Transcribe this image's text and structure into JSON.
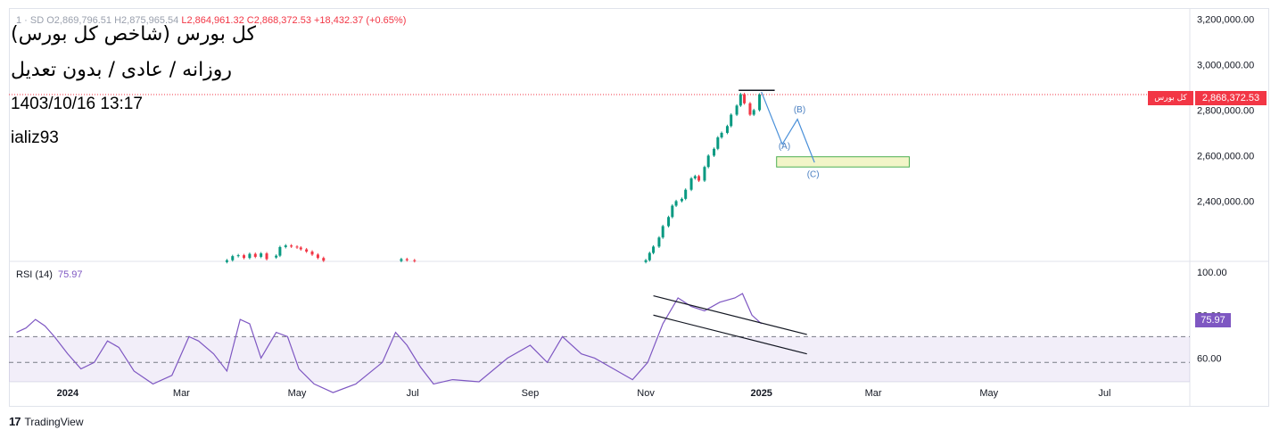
{
  "ohlc_text": {
    "lead": "1 · SD",
    "open": "O2,869,796.51",
    "high": "H2,875,965.54",
    "low": "L2,864,961.32",
    "close": "C2,868,372.53",
    "change": "+18,432.37 (+0.65%)"
  },
  "title_lines": [
    "کل بورس (شاخص کل بورس)",
    "روزانه / عادی / بدون تعدیل",
    "1403/10/16  13:17",
    "ializ93"
  ],
  "last_price": {
    "value": "2,868,372.53",
    "name": "کل بورس",
    "color": "#f23645"
  },
  "rsi_label": {
    "name": "RSI (14)",
    "value": "75.97",
    "color": "#7e57c2"
  },
  "brand": {
    "logo": "17",
    "name": "TradingView"
  },
  "colors": {
    "up": "#089981",
    "down": "#f23645",
    "rsi": "#7e57c2",
    "projection": "#2962ff",
    "box": "#f2f5c8"
  },
  "chart_data": [
    {
      "type": "candlestick",
      "ylabel": "",
      "ylim": [
        2135000,
        3245000
      ],
      "y_ticks": [
        "3,200,000.00",
        "3,000,000.00",
        "2,800,000.00",
        "2,600,000.00",
        "2,400,000.00"
      ],
      "x_ticks": [
        "2024",
        "Mar",
        "May",
        "Jul",
        "Sep",
        "Nov",
        "2025",
        "Mar",
        "May",
        "Jul"
      ],
      "last_value": 2868372.53,
      "segments": [
        {
          "from": "2024-03-25",
          "to": "2024-04-15",
          "values": [
            2140000,
            2158000,
            2162000,
            2150000,
            2168000,
            2155000,
            2170000,
            2145000
          ]
        },
        {
          "from": "2024-04-20",
          "to": "2024-05-15",
          "values": [
            2160000,
            2198000,
            2205000,
            2200000,
            2196000,
            2188000,
            2178000,
            2165000,
            2150000,
            2138000
          ]
        },
        {
          "from": "2024-06-25",
          "to": "2024-07-02",
          "values": [
            2145000,
            2140000,
            2136000
          ]
        },
        {
          "from": "2024-11-01",
          "to": "2024-12-31",
          "values": [
            2140000,
            2172000,
            2200000,
            2240000,
            2290000,
            2330000,
            2380000,
            2400000,
            2410000,
            2450000,
            2500000,
            2510000,
            2490000,
            2550000,
            2600000,
            2630000,
            2680000,
            2700000,
            2730000,
            2780000,
            2820000,
            2870000,
            2830000,
            2780000,
            2800000,
            2868372.53
          ]
        }
      ],
      "annotations": [
        {
          "text": "(B)",
          "x": "2025-01-18",
          "y": 2790000
        },
        {
          "text": "(A)",
          "x": "2025-01-10",
          "y": 2630000
        },
        {
          "text": "(C)",
          "x": "2025-01-25",
          "y": 2505000
        }
      ],
      "projection": [
        {
          "x": "2025-01-01",
          "y": 2880000
        },
        {
          "x": "2025-01-12",
          "y": 2650000
        },
        {
          "x": "2025-01-20",
          "y": 2760000
        },
        {
          "x": "2025-01-29",
          "y": 2570000
        }
      ],
      "target_box": {
        "x_from": "2025-01-09",
        "x_to": "2025-03-20",
        "y_from": 2550000,
        "y_to": 2595000
      },
      "top_line": {
        "x_from": "2024-12-20",
        "x_to": "2025-01-08",
        "y": 2887000
      }
    },
    {
      "type": "line",
      "name": "RSI (14)",
      "ylim": [
        49,
        105
      ],
      "y_ticks": [
        "100.00",
        "80.00",
        "60.00"
      ],
      "bands": [
        70,
        58
      ],
      "last_value": 75.97,
      "x": [
        "2023-12-05",
        "2023-12-10",
        "2023-12-15",
        "2023-12-20",
        "2023-12-25",
        "2024-01-01",
        "2024-01-08",
        "2024-01-15",
        "2024-01-22",
        "2024-01-28",
        "2024-02-05",
        "2024-02-15",
        "2024-02-25",
        "2024-03-05",
        "2024-03-10",
        "2024-03-18",
        "2024-03-25",
        "2024-04-01",
        "2024-04-06",
        "2024-04-12",
        "2024-04-20",
        "2024-04-26",
        "2024-05-02",
        "2024-05-10",
        "2024-05-20",
        "2024-06-01",
        "2024-06-15",
        "2024-06-22",
        "2024-06-28",
        "2024-07-05",
        "2024-07-12",
        "2024-07-22",
        "2024-08-05",
        "2024-08-20",
        "2024-09-01",
        "2024-09-10",
        "2024-09-18",
        "2024-09-28",
        "2024-10-05",
        "2024-10-15",
        "2024-10-25",
        "2024-11-02",
        "2024-11-10",
        "2024-11-18",
        "2024-11-25",
        "2024-12-02",
        "2024-12-10",
        "2024-12-18",
        "2024-12-22",
        "2024-12-27",
        "2025-01-01"
      ],
      "values": [
        72,
        74,
        78,
        75,
        70,
        62,
        55,
        58,
        68,
        65,
        54,
        48,
        52,
        70,
        68,
        62,
        54,
        78,
        76,
        60,
        72,
        70,
        55,
        48,
        44,
        48,
        58,
        72,
        66,
        56,
        48,
        50,
        49,
        60,
        66,
        58,
        70,
        62,
        60,
        55,
        50,
        58,
        76,
        88,
        84,
        82,
        86,
        88,
        90,
        80,
        75.97
      ]
    }
  ]
}
